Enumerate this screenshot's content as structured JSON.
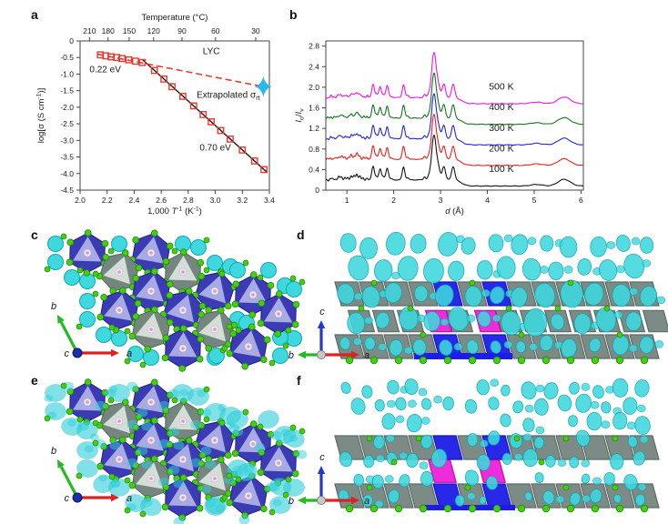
{
  "panel_labels": {
    "a": "a",
    "b": "b",
    "c": "c",
    "d": "d",
    "e": "e",
    "f": "f"
  },
  "chart_data": [
    {
      "panel": "a",
      "type": "scatter",
      "xlabel": "1,000 *T*^{-1} (K^{-1})",
      "ylabel": "log[σ (S cm^{-1})]",
      "xlim": [
        2.0,
        3.4
      ],
      "ylim": [
        -4.5,
        0
      ],
      "x_ticks": [
        "2.0",
        "2.2",
        "2.4",
        "2.6",
        "2.8",
        "3.0",
        "3.2",
        "3.4"
      ],
      "y_ticks": [
        "0",
        "-0.5",
        "-1.0",
        "-1.5",
        "-2.0",
        "-2.5",
        "-3.0",
        "-3.5",
        "-4.0",
        "-4.5"
      ],
      "top_axis": {
        "label": "Temperature (°C)",
        "ticks": [
          210,
          180,
          150,
          120,
          90,
          60,
          30
        ]
      },
      "series": [
        {
          "name": "LYC conductivity data",
          "marker": "open-square",
          "color": "#e8392f",
          "points": [
            [
              2.15,
              -0.42
            ],
            [
              2.19,
              -0.45
            ],
            [
              2.23,
              -0.48
            ],
            [
              2.27,
              -0.5
            ],
            [
              2.31,
              -0.53
            ],
            [
              2.36,
              -0.57
            ],
            [
              2.41,
              -0.61
            ],
            [
              2.46,
              -0.65
            ],
            [
              2.55,
              -0.89
            ],
            [
              2.62,
              -1.15
            ],
            [
              2.68,
              -1.38
            ],
            [
              2.76,
              -1.67
            ],
            [
              2.84,
              -1.96
            ],
            [
              2.91,
              -2.22
            ],
            [
              2.97,
              -2.44
            ],
            [
              3.04,
              -2.7
            ],
            [
              3.11,
              -2.96
            ],
            [
              3.2,
              -3.29
            ],
            [
              3.29,
              -3.62
            ],
            [
              3.36,
              -3.88
            ]
          ]
        },
        {
          "name": "Arrhenius fit 0.70 eV",
          "style": "solid-line",
          "color": "#1a1a1a",
          "from": [
            2.46,
            -0.56
          ],
          "to": [
            3.385,
            -3.97
          ]
        },
        {
          "name": "Extrapolation 0.22 eV",
          "style": "dashed-line",
          "color": "#e8392f",
          "from": [
            2.13,
            -0.4
          ],
          "to": [
            3.355,
            -1.38
          ]
        },
        {
          "name": "Extrapolated room-temperature conductivity",
          "marker": "four-point-star",
          "color": "#29b8ef",
          "point": [
            3.355,
            -1.38
          ]
        }
      ],
      "annotations": [
        {
          "text": "LYC",
          "x": 2.97,
          "y": -0.4,
          "anchor": "middle"
        },
        {
          "text": "0.22 eV",
          "x": 2.07,
          "y": -0.95,
          "anchor": "start"
        },
        {
          "text": "Extrapolated σ_{rt}",
          "x": 3.33,
          "y": -1.72,
          "anchor": "end"
        },
        {
          "text": "0.70 eV",
          "x": 3.0,
          "y": -3.3,
          "anchor": "middle"
        }
      ]
    },
    {
      "panel": "b",
      "type": "line",
      "xlabel": "*d* (Å)",
      "ylabel": "*I*_{o}/*I*_{v}",
      "xlim": [
        0.55,
        6.05
      ],
      "ylim": [
        0,
        2.9
      ],
      "x_ticks": [
        "1",
        "2",
        "3",
        "4",
        "5",
        "6"
      ],
      "y_ticks": [
        "0",
        "0.4",
        "0.8",
        "1.2",
        "1.6",
        "2.0",
        "2.4",
        "2.8"
      ],
      "series": [
        {
          "name": "500 K",
          "color": "#ee15ee",
          "offset": 1.8
        },
        {
          "name": "400 K",
          "color": "#17741f",
          "offset": 1.4
        },
        {
          "name": "300 K",
          "color": "#2525e0",
          "offset": 1.0
        },
        {
          "name": "200 K",
          "color": "#ea2020",
          "offset": 0.6
        },
        {
          "name": "100 K",
          "color": "#141414",
          "offset": 0.2
        }
      ],
      "label_x": 4.3,
      "peaks": [
        [
          0.66,
          0.025
        ],
        [
          0.74,
          0.02
        ],
        [
          0.82,
          0.05
        ],
        [
          0.88,
          0.06
        ],
        [
          0.95,
          0.04
        ],
        [
          1.02,
          0.03
        ],
        [
          1.09,
          0.08
        ],
        [
          1.15,
          0.06
        ],
        [
          1.21,
          0.11
        ],
        [
          1.27,
          0.07
        ],
        [
          1.35,
          0.03
        ],
        [
          1.43,
          0.03
        ],
        [
          1.56,
          0.26,
          0.028
        ],
        [
          1.63,
          0.06
        ],
        [
          1.71,
          0.21,
          0.028
        ],
        [
          1.78,
          0.05
        ],
        [
          1.86,
          0.23,
          0.028
        ],
        [
          1.95,
          0.02
        ],
        [
          2.21,
          0.25,
          0.028
        ],
        [
          2.3,
          0.04
        ],
        [
          2.66,
          0.06
        ],
        [
          2.74,
          0.04
        ],
        [
          2.86,
          0.87,
          0.05
        ],
        [
          2.96,
          0.17,
          0.035
        ],
        [
          3.07,
          0.26,
          0.035
        ],
        [
          3.27,
          0.26,
          0.035
        ],
        [
          5.05,
          0.03,
          0.12
        ],
        [
          5.64,
          0.13,
          0.13
        ]
      ],
      "baseline_drop": {
        "at": 3.45,
        "amount": 0.12
      }
    }
  ],
  "structures": {
    "c": {
      "view": "crystal structure, top view along c",
      "axes": {
        "diag_up": "b",
        "right": "a",
        "origin": "c"
      }
    },
    "d": {
      "view": "Li nuclear-density isosurface, side view",
      "axes": {
        "up": "c",
        "left": "b",
        "right": "a"
      }
    },
    "e": {
      "view": "crystal structure with Li isosurface, top view along c",
      "axes": {
        "diag_up": "b",
        "right": "a",
        "origin": "c"
      }
    },
    "f": {
      "view": "Li nuclear-density isosurface, side view",
      "axes": {
        "up": "c",
        "left": "b",
        "right": "a"
      }
    },
    "palette": {
      "octahedron_blue": "#3b3bb5",
      "octahedron_blue_face": "#b7b9e9",
      "octahedron_gray": "#75857f",
      "octahedron_gray_face": "#e2e9e4",
      "lithium_cyan": "#3ed8de",
      "chlorine_green": "#44cd12",
      "highlight_blue": "#1d1de8",
      "highlight_magenta": "#f020d8",
      "axis_a_red": "#dd2222",
      "axis_b_green": "#22bb22",
      "axis_c_blue": "#2438cc"
    }
  }
}
